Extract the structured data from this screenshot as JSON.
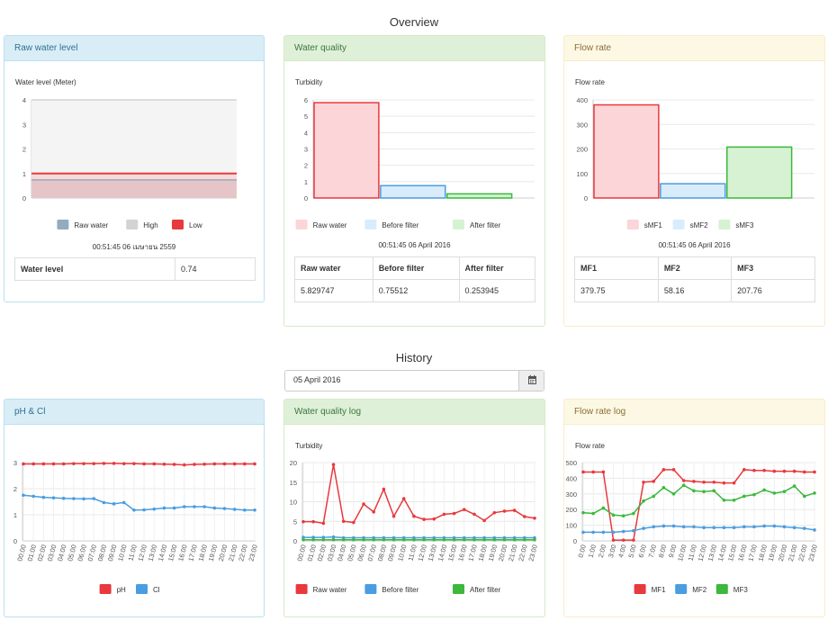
{
  "overview_title": "Overview",
  "history_title": "History",
  "raw_water_panel": {
    "heading": "Raw water level",
    "chart_caption": "Water level (Meter)",
    "timestamp": "00:51:45 06 เมษายน 2559",
    "table_label": "Water level",
    "table_value": "0.74"
  },
  "water_quality_panel": {
    "heading": "Water quality",
    "chart_caption": "Turbidity",
    "timestamp": "00:51:45 06 April 2016",
    "headers": [
      "Raw water",
      "Before filter",
      "After filter"
    ],
    "values": [
      "5.829747",
      "0.75512",
      "0.253945"
    ]
  },
  "flow_rate_panel": {
    "heading": "Flow rate",
    "chart_caption": "Flow rate",
    "timestamp": "00:51:45 06 April 2016",
    "headers": [
      "MF1",
      "MF2",
      "MF3"
    ],
    "values": [
      "379.75",
      "58.16",
      "207.76"
    ]
  },
  "date_picker": {
    "value": "05 April 2016",
    "icon": "calendar-icon"
  },
  "ph_panel": {
    "heading": "pH & Cl"
  },
  "wq_log_panel": {
    "heading": "Water quality log",
    "chart_caption": "Turbidity"
  },
  "flow_log_panel": {
    "heading": "Flow rate log",
    "chart_caption": "Flow rate"
  },
  "colors": {
    "red": "#e8393d",
    "blue": "#4a9de0",
    "green": "#3cb83c",
    "bar_red_fill": "#fcd5d8",
    "bar_blue_fill": "#d9ecfb",
    "bar_green_fill": "#d6f2d3",
    "gray": "#d3d3d3",
    "steel": "#93abbf"
  },
  "chart_data": [
    {
      "id": "raw_water_level",
      "type": "area",
      "title": "Water level (Meter)",
      "ylim": [
        0,
        4
      ],
      "yticks": [
        0,
        1,
        2,
        3,
        4
      ],
      "series": [
        {
          "name": "Raw water",
          "value": 0.74,
          "color": "#93abbf"
        },
        {
          "name": "High",
          "value": 4,
          "color": "#d3d3d3"
        },
        {
          "name": "Low",
          "value": 1,
          "color": "#e8393d"
        }
      ]
    },
    {
      "id": "water_quality",
      "type": "bar",
      "title": "Turbidity",
      "categories": [
        "Raw water",
        "Before filter",
        "After filter"
      ],
      "values": [
        5.829747,
        0.75512,
        0.253945
      ],
      "ylim": [
        0,
        6
      ],
      "yticks": [
        0,
        1,
        2,
        3,
        4,
        5,
        6
      ]
    },
    {
      "id": "flow_rate",
      "type": "bar",
      "title": "Flow rate",
      "categories": [
        "sMF1",
        "sMF2",
        "sMF3"
      ],
      "values": [
        379.75,
        58.16,
        207.76
      ],
      "ylim": [
        0,
        400
      ],
      "yticks": [
        0,
        100,
        200,
        300,
        400
      ]
    },
    {
      "id": "ph_cl",
      "type": "line",
      "x": [
        "00:00",
        "01:00",
        "02:00",
        "03:00",
        "04:00",
        "05:00",
        "06:00",
        "07:00",
        "08:00",
        "09:00",
        "10:00",
        "11:00",
        "12:00",
        "13:00",
        "14:00",
        "15:00",
        "16:00",
        "17:00",
        "18:00",
        "19:00",
        "20:00",
        "21:00",
        "22:00",
        "23:00"
      ],
      "ylim": [
        0,
        3
      ],
      "yticks": [
        "0",
        "1",
        "2",
        "3"
      ],
      "series": [
        {
          "name": "pH",
          "color": "#e8393d",
          "values": [
            2.95,
            2.95,
            2.95,
            2.95,
            2.95,
            2.96,
            2.96,
            2.96,
            2.97,
            2.97,
            2.96,
            2.96,
            2.95,
            2.95,
            2.94,
            2.93,
            2.91,
            2.93,
            2.94,
            2.95,
            2.95,
            2.95,
            2.95,
            2.95
          ]
        },
        {
          "name": "Cl",
          "color": "#4a9de0",
          "values": [
            1.75,
            1.71,
            1.67,
            1.65,
            1.63,
            1.62,
            1.61,
            1.62,
            1.47,
            1.42,
            1.47,
            1.18,
            1.19,
            1.22,
            1.26,
            1.26,
            1.31,
            1.31,
            1.31,
            1.26,
            1.24,
            1.21,
            1.18,
            1.18
          ]
        }
      ]
    },
    {
      "id": "water_quality_log",
      "type": "line",
      "title": "Turbidity",
      "x": [
        "00:00",
        "01:00",
        "02:00",
        "03:00",
        "04:00",
        "05:00",
        "06:00",
        "07:00",
        "08:00",
        "09:00",
        "10:00",
        "11:00",
        "12:00",
        "13:00",
        "14:00",
        "15:00",
        "16:00",
        "17:00",
        "18:00",
        "19:00",
        "20:00",
        "21:00",
        "22:00",
        "23:00"
      ],
      "ylim": [
        0,
        20
      ],
      "yticks": [
        "0",
        "5",
        "10",
        "15",
        "20"
      ],
      "series": [
        {
          "name": "Raw water",
          "color": "#e8393d",
          "values": [
            4.9,
            4.9,
            4.5,
            19.5,
            5.0,
            4.7,
            9.4,
            7.4,
            13.2,
            6.3,
            10.8,
            6.3,
            5.5,
            5.6,
            6.8,
            7.0,
            8.0,
            6.8,
            5.2,
            7.2,
            7.6,
            7.8,
            6.2,
            5.8
          ]
        },
        {
          "name": "Before filter",
          "color": "#4a9de0",
          "values": [
            0.9,
            0.9,
            0.9,
            1.0,
            0.8,
            0.8,
            0.8,
            0.8,
            0.8,
            0.8,
            0.8,
            0.8,
            0.8,
            0.8,
            0.8,
            0.8,
            0.8,
            0.8,
            0.8,
            0.8,
            0.8,
            0.8,
            0.8,
            0.8
          ]
        },
        {
          "name": "After filter",
          "color": "#3cb83c",
          "values": [
            0.3,
            0.3,
            0.3,
            0.3,
            0.3,
            0.3,
            0.3,
            0.3,
            0.3,
            0.3,
            0.3,
            0.3,
            0.3,
            0.3,
            0.3,
            0.3,
            0.3,
            0.3,
            0.3,
            0.3,
            0.3,
            0.3,
            0.3,
            0.3
          ]
        }
      ]
    },
    {
      "id": "flow_rate_log",
      "type": "line",
      "title": "Flow rate",
      "x": [
        "0:00",
        "1:00",
        "2:00",
        "3:00",
        "4:00",
        "5:00",
        "6:00",
        "7:00",
        "8:00",
        "9:00",
        "10:00",
        "11:00",
        "12:00",
        "13:00",
        "14:00",
        "15:00",
        "16:00",
        "17:00",
        "18:00",
        "19:00",
        "20:00",
        "21:00",
        "22:00",
        "23:00"
      ],
      "ylim": [
        0,
        500
      ],
      "yticks": [
        "0",
        "100",
        "200",
        "300",
        "400",
        "500"
      ],
      "series": [
        {
          "name": "MF1",
          "color": "#e8393d",
          "values": [
            440,
            440,
            440,
            5,
            5,
            5,
            375,
            380,
            455,
            455,
            385,
            380,
            375,
            375,
            370,
            370,
            455,
            450,
            450,
            445,
            445,
            445,
            440,
            440
          ]
        },
        {
          "name": "MF2",
          "color": "#4a9de0",
          "values": [
            55,
            55,
            55,
            55,
            60,
            65,
            80,
            90,
            95,
            95,
            90,
            90,
            85,
            85,
            85,
            85,
            90,
            90,
            95,
            95,
            90,
            85,
            80,
            70
          ]
        },
        {
          "name": "MF3",
          "color": "#3cb83c",
          "values": [
            180,
            175,
            210,
            165,
            160,
            175,
            255,
            285,
            340,
            300,
            355,
            320,
            315,
            320,
            260,
            260,
            285,
            295,
            325,
            305,
            315,
            350,
            285,
            305
          ]
        }
      ]
    }
  ]
}
